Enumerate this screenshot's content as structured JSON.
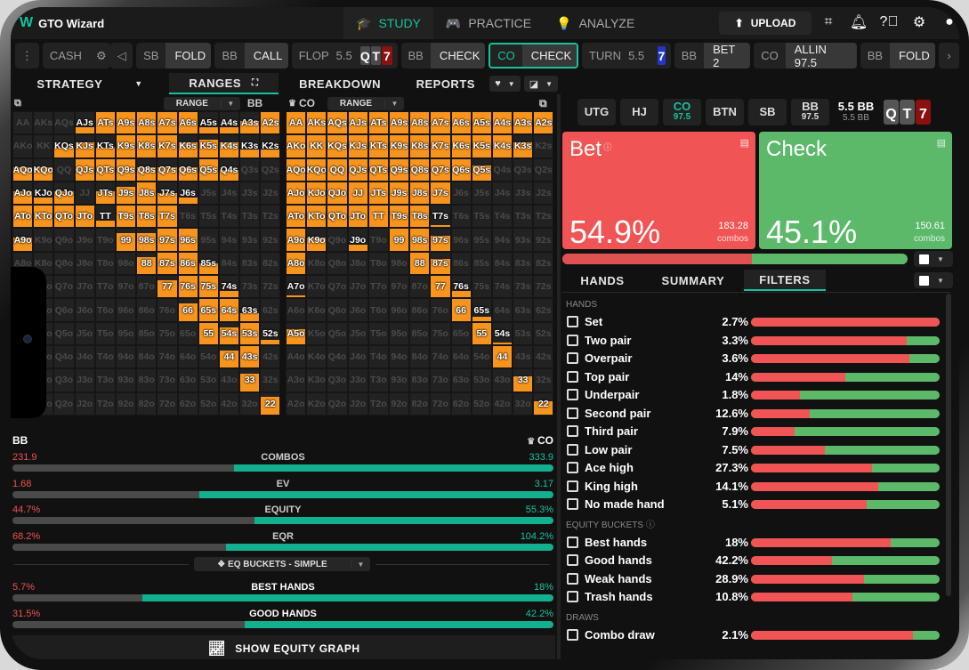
{
  "app": {
    "title": "GTO Wizard",
    "logo": "W"
  },
  "nav": {
    "tabs": [
      {
        "label": "STUDY",
        "icon": "graduation-cap-icon",
        "active": true
      },
      {
        "label": "PRACTICE",
        "icon": "gamepad-icon",
        "active": false
      },
      {
        "label": "ANALYZE",
        "icon": "lightbulb-icon",
        "active": false
      }
    ],
    "upload_label": "UPLOAD",
    "icons": [
      "screenshot-icon",
      "bell-icon",
      "help-icon",
      "gear-icon",
      "user-icon"
    ]
  },
  "action_bar": {
    "game_type": "CASH",
    "chips": [
      {
        "pos": "SB",
        "action": "FOLD"
      },
      {
        "pos": "BB",
        "action": "CALL"
      },
      {
        "pos": "BB",
        "action": "CHECK"
      },
      {
        "pos": "CO",
        "action": "CHECK",
        "selected": true
      },
      {
        "pos": "BB",
        "action": "BET 2"
      },
      {
        "pos": "CO",
        "action": "ALLIN 97.5"
      },
      {
        "pos": "BB",
        "action": "FOLD"
      }
    ],
    "flop": {
      "label": "FLOP",
      "pot": "5.5",
      "cards": [
        "Q",
        "T",
        "7"
      ]
    },
    "turn": {
      "label": "TURN",
      "pot": "5.5",
      "card": "7"
    }
  },
  "subtabs": [
    {
      "label": "STRATEGY",
      "active": false
    },
    {
      "label": "RANGES",
      "active": true
    },
    {
      "label": "BREAKDOWN",
      "active": false
    },
    {
      "label": "REPORTS",
      "active": false
    }
  ],
  "matrix_left": {
    "dropdown": "RANGE",
    "player": "BB",
    "cells": [
      [
        "AA",
        "AKs",
        "AQs",
        "AJs",
        "ATs",
        "A9s",
        "A8s",
        "A7s",
        "A6s",
        "A5s",
        "A4s",
        "A3s",
        "A2s"
      ],
      [
        "AKo",
        "KK",
        "KQs",
        "KJs",
        "KTs",
        "K9s",
        "K8s",
        "K7s",
        "K6s",
        "K5s",
        "K4s",
        "K3s",
        "K2s"
      ],
      [
        "AQo",
        "KQo",
        "QQ",
        "QJs",
        "QTs",
        "Q9s",
        "Q8s",
        "Q7s",
        "Q6s",
        "Q5s",
        "Q4s",
        "Q3s",
        "Q2s"
      ],
      [
        "AJo",
        "KJo",
        "QJo",
        "JJ",
        "JTs",
        "J9s",
        "J8s",
        "J7s",
        "J6s",
        "J5s",
        "J4s",
        "J3s",
        "J2s"
      ],
      [
        "ATo",
        "KTo",
        "QTo",
        "JTo",
        "TT",
        "T9s",
        "T8s",
        "T7s",
        "T6s",
        "T5s",
        "T4s",
        "T3s",
        "T2s"
      ],
      [
        "A9o",
        "K9o",
        "Q9o",
        "J9o",
        "T9o",
        "99",
        "98s",
        "97s",
        "96s",
        "95s",
        "94s",
        "93s",
        "92s"
      ],
      [
        "A8o",
        "K8o",
        "Q8o",
        "J8o",
        "T8o",
        "98o",
        "88",
        "87s",
        "86s",
        "85s",
        "84s",
        "83s",
        "82s"
      ],
      [
        "A7o",
        "K7o",
        "Q7o",
        "J7o",
        "T7o",
        "97o",
        "87o",
        "77",
        "76s",
        "75s",
        "74s",
        "73s",
        "72s"
      ],
      [
        "A6o",
        "K6o",
        "Q6o",
        "J6o",
        "T6o",
        "96o",
        "86o",
        "76o",
        "66",
        "65s",
        "64s",
        "63s",
        "62s"
      ],
      [
        "A5o",
        "K5o",
        "Q5o",
        "J5o",
        "T5o",
        "95o",
        "85o",
        "75o",
        "65o",
        "55",
        "54s",
        "53s",
        "52s"
      ],
      [
        "A4o",
        "K4o",
        "Q4o",
        "J4o",
        "T4o",
        "94o",
        "84o",
        "74o",
        "64o",
        "54o",
        "44",
        "43s",
        "42s"
      ],
      [
        "A3o",
        "K3o",
        "Q3o",
        "J3o",
        "T3o",
        "93o",
        "83o",
        "73o",
        "63o",
        "53o",
        "43o",
        "33",
        "32s"
      ],
      [
        "A2o",
        "K2o",
        "Q2o",
        "J2o",
        "T2o",
        "92o",
        "82o",
        "72o",
        "62o",
        "52o",
        "42o",
        "32o",
        "22"
      ]
    ],
    "fills": [
      [
        0,
        0,
        0,
        0.3,
        1,
        1,
        1,
        1,
        1,
        0.3,
        0.3,
        0.6,
        1
      ],
      [
        0,
        0,
        0.45,
        0.7,
        0.45,
        1,
        1,
        1,
        0.7,
        0.8,
        0.7,
        0.35,
        0.35
      ],
      [
        0.6,
        0.6,
        0,
        1,
        1,
        1,
        0.6,
        0.6,
        0.6,
        1,
        0.5,
        0,
        0
      ],
      [
        0.6,
        0.3,
        0.6,
        0,
        0.6,
        0.8,
        1,
        0.5,
        0.3,
        0,
        0,
        0,
        0
      ],
      [
        1,
        1,
        1,
        1,
        0.3,
        1,
        1,
        1,
        0,
        0,
        0,
        0,
        0
      ],
      [
        0.6,
        0,
        0,
        0,
        0,
        0.8,
        0.8,
        1,
        1,
        0,
        0,
        0,
        0
      ],
      [
        0,
        0,
        0,
        0,
        0,
        0,
        0.8,
        1,
        1,
        0.5,
        0,
        0,
        0
      ],
      [
        0,
        0,
        0,
        0,
        0,
        0,
        0,
        0.8,
        1,
        1,
        0.3,
        0,
        0
      ],
      [
        0,
        0,
        0,
        0,
        0,
        0,
        0,
        0,
        0.8,
        1,
        1,
        0.35,
        0
      ],
      [
        0,
        0,
        0,
        0,
        0,
        0,
        0,
        0,
        0,
        1,
        0.8,
        1,
        0.2
      ],
      [
        0,
        0,
        0,
        0,
        0,
        0,
        0,
        0,
        0,
        0,
        0.8,
        1,
        0
      ],
      [
        0,
        0,
        0,
        0,
        0,
        0,
        0,
        0,
        0,
        0,
        0,
        0.8,
        0
      ],
      [
        0,
        0,
        0,
        0,
        0,
        0,
        0,
        0,
        0,
        0,
        0,
        0,
        0.8
      ]
    ]
  },
  "matrix_right": {
    "dropdown": "RANGE",
    "player": "CO",
    "fills": [
      [
        1,
        1,
        1,
        1,
        1,
        1,
        1,
        1,
        1,
        1,
        1,
        1,
        1
      ],
      [
        1,
        1,
        1,
        1,
        1,
        1,
        1,
        1,
        1,
        1,
        1,
        0.7,
        0
      ],
      [
        1,
        1,
        1,
        1,
        1,
        1,
        1,
        1,
        1,
        0.7,
        0,
        0,
        0
      ],
      [
        1,
        1,
        1,
        1,
        1,
        1,
        1,
        1,
        0,
        0,
        0,
        0,
        0
      ],
      [
        1,
        1,
        1,
        1,
        1,
        1,
        1,
        0.1,
        0,
        0,
        0,
        0,
        0
      ],
      [
        1,
        0.6,
        0,
        0.3,
        0,
        1,
        1,
        0.7,
        0,
        0,
        0,
        0,
        0
      ],
      [
        1,
        0,
        0,
        0,
        0,
        0,
        1,
        0.7,
        0,
        0,
        0,
        0,
        0
      ],
      [
        0.1,
        0,
        0,
        0,
        0,
        0,
        0,
        1,
        0.3,
        0,
        0,
        0,
        0
      ],
      [
        0,
        0,
        0,
        0,
        0,
        0,
        0,
        0,
        1,
        0.2,
        0,
        0,
        0
      ],
      [
        0.7,
        0,
        0,
        0,
        0,
        0,
        0,
        0,
        0,
        1,
        0.1,
        0,
        0
      ],
      [
        0,
        0,
        0,
        0,
        0,
        0,
        0,
        0,
        0,
        0,
        1,
        0,
        0
      ],
      [
        0,
        0,
        0,
        0,
        0,
        0,
        0,
        0,
        0,
        0,
        0,
        0.7,
        0
      ],
      [
        0,
        0,
        0,
        0,
        0,
        0,
        0,
        0,
        0,
        0,
        0,
        0,
        0.6
      ]
    ]
  },
  "comparison": {
    "left_player": "BB",
    "right_player": "CO",
    "rows": [
      {
        "label": "COMBOS",
        "left": "231.9",
        "right": "333.9",
        "right_share": 0.59
      },
      {
        "label": "EV",
        "left": "1.68",
        "right": "3.17",
        "right_share": 0.654
      },
      {
        "label": "EQUITY",
        "left": "44.7%",
        "right": "55.3%",
        "right_share": 0.553
      },
      {
        "label": "EQR",
        "left": "68.2%",
        "right": "104.2%",
        "right_share": 0.605
      }
    ],
    "buckets_dropdown": "EQ BUCKETS - SIMPLE",
    "bucket_rows": [
      {
        "label": "BEST HANDS",
        "left": "5.7%",
        "right": "18%",
        "right_share": 0.76
      },
      {
        "label": "GOOD HANDS",
        "left": "31.5%",
        "right": "42.2%",
        "right_share": 0.57
      }
    ],
    "show_graph_label": "SHOW EQUITY GRAPH"
  },
  "positions": [
    {
      "name": "UTG",
      "stack": ""
    },
    {
      "name": "HJ",
      "stack": ""
    },
    {
      "name": "CO",
      "stack": "97.5",
      "active": true
    },
    {
      "name": "BTN",
      "stack": ""
    },
    {
      "name": "SB",
      "stack": ""
    },
    {
      "name": "BB",
      "stack": "97.5"
    }
  ],
  "pot": {
    "main": "5.5 BB",
    "sub": "5.5 BB"
  },
  "board": [
    "Q",
    "T",
    "7"
  ],
  "actions": [
    {
      "name": "Bet",
      "pct": "54.9%",
      "combos": "183.28",
      "combos_label": "combos",
      "color": "#f05454"
    },
    {
      "name": "Check",
      "pct": "45.1%",
      "combos": "150.61",
      "combos_label": "combos",
      "color": "#5cb96a"
    }
  ],
  "freq_split": 0.549,
  "right_tabs": [
    {
      "label": "HANDS",
      "active": false
    },
    {
      "label": "SUMMARY",
      "active": false
    },
    {
      "label": "FILTERS",
      "active": true
    }
  ],
  "filters": {
    "sections": [
      {
        "title": "HANDS",
        "rows": [
          {
            "name": "Set",
            "pct": "2.7%",
            "bet": 1.0
          },
          {
            "name": "Two pair",
            "pct": "3.3%",
            "bet": 0.825
          },
          {
            "name": "Overpair",
            "pct": "3.6%",
            "bet": 0.84
          },
          {
            "name": "Top pair",
            "pct": "14%",
            "bet": 0.5
          },
          {
            "name": "Underpair",
            "pct": "1.8%",
            "bet": 0.26
          },
          {
            "name": "Second pair",
            "pct": "12.6%",
            "bet": 0.31
          },
          {
            "name": "Third pair",
            "pct": "7.9%",
            "bet": 0.23
          },
          {
            "name": "Low pair",
            "pct": "7.5%",
            "bet": 0.39
          },
          {
            "name": "Ace high",
            "pct": "27.3%",
            "bet": 0.64
          },
          {
            "name": "King high",
            "pct": "14.1%",
            "bet": 0.675
          },
          {
            "name": "No made hand",
            "pct": "5.1%",
            "bet": 0.615
          }
        ]
      },
      {
        "title": "EQUITY BUCKETS",
        "rows": [
          {
            "name": "Best hands",
            "pct": "18%",
            "bet": 0.74
          },
          {
            "name": "Good hands",
            "pct": "42.2%",
            "bet": 0.43
          },
          {
            "name": "Weak hands",
            "pct": "28.9%",
            "bet": 0.6
          },
          {
            "name": "Trash hands",
            "pct": "10.8%",
            "bet": 0.54
          }
        ]
      },
      {
        "title": "DRAWS",
        "rows": [
          {
            "name": "Combo draw",
            "pct": "2.1%",
            "bet": 0.86
          }
        ]
      }
    ]
  }
}
